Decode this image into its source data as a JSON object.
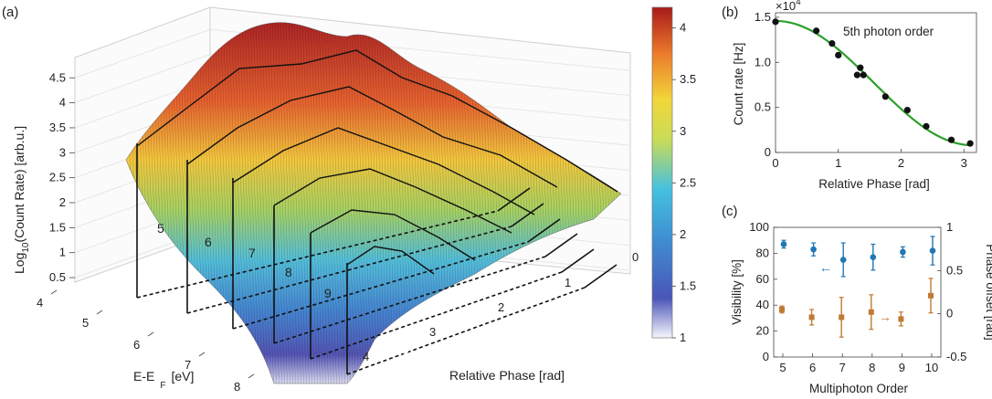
{
  "panel_a": {
    "label": "(a)",
    "zlabel_pre": "Log",
    "zlabel_sub": "10",
    "zlabel_post": "(Count Rate) [arb.u.]",
    "xlabel_pre": "E-E",
    "xlabel_sub": "F",
    "xlabel_post": "[eV]",
    "ylabel": "Relative Phase [rad]",
    "colorbar_ticks": [
      "4",
      "3.5",
      "3",
      "2.5",
      "2",
      "1.5",
      "1"
    ],
    "order_labels": [
      "5",
      "6",
      "7",
      "8",
      "9",
      "10"
    ]
  },
  "panel_b": {
    "label": "(b)",
    "multiplier_base": "×10",
    "multiplier_exp": "4"
  },
  "panel_c": {
    "label": "(c)",
    "arrow_left": "←",
    "arrow_right": "→"
  },
  "chart_data": [
    {
      "type": "surface",
      "title": "",
      "xlabel": "E-E F [eV]",
      "ylabel": "Relative Phase [rad]",
      "zlabel": "Log10(Count Rate) [arb.u.]",
      "x_ticks": [
        "4",
        "5",
        "6",
        "7",
        "8"
      ],
      "y_ticks": [
        "0",
        "1",
        "2",
        "3",
        "4"
      ],
      "z_ticks": [
        "0.5",
        "1",
        "1.5",
        "2",
        "2.5",
        "3",
        "3.5",
        "4",
        "4.5"
      ],
      "colorbar_range": [
        1,
        4.2
      ],
      "grid": true,
      "profile_at_phase_0": {
        "x": [
          3.5,
          4.0,
          4.5,
          5.0,
          5.5,
          6.0,
          6.5,
          7.0,
          7.5,
          8.0,
          8.5
        ],
        "z": [
          3.9,
          4.2,
          4.5,
          4.4,
          4.1,
          3.6,
          3.2,
          2.8,
          2.4,
          2.1,
          2.0
        ]
      },
      "order_labels": [
        "5",
        "6",
        "7",
        "8",
        "9",
        "10"
      ]
    },
    {
      "type": "scatter",
      "title": "",
      "xlabel": "Relative Phase [rad]",
      "ylabel": "Count rate [Hz]",
      "annotation": "5th photon order",
      "y_multiplier": "×10^4",
      "xlim": [
        0,
        3.2
      ],
      "ylim": [
        0,
        1.55
      ],
      "x_ticks": [
        "0",
        "1",
        "2",
        "3"
      ],
      "y_ticks": [
        "0",
        "0.5",
        "1.0",
        "1.5"
      ],
      "series": [
        {
          "x": [
            0.0,
            0.65,
            0.9,
            1.0,
            1.3,
            1.35,
            1.4,
            1.75,
            2.1,
            2.4,
            2.8,
            3.1
          ],
          "y": [
            1.45,
            1.35,
            1.21,
            1.08,
            0.86,
            0.94,
            0.86,
            0.62,
            0.47,
            0.29,
            0.14,
            0.1
          ]
        }
      ],
      "fit": {
        "color": "#2ca02c"
      }
    },
    {
      "type": "scatter",
      "title": "",
      "xlabel": "Multiphoton Order",
      "ylabel": "Visibility [%]",
      "y2label": "Phase offset [rad]",
      "x_ticks": [
        "5",
        "6",
        "7",
        "8",
        "9",
        "10"
      ],
      "y_ticks": [
        "0",
        "20",
        "40",
        "60",
        "80",
        "100"
      ],
      "y2_ticks": [
        "-0.5",
        "0",
        "0.5",
        "1"
      ],
      "ylim": [
        0,
        100
      ],
      "y2lim": [
        -0.5,
        1
      ],
      "series": [
        {
          "axis": "left",
          "color": "#1f77b4",
          "x": [
            5,
            6,
            7,
            8,
            9,
            10
          ],
          "y": [
            87,
            83,
            75,
            77,
            81,
            82
          ],
          "err": [
            3,
            5,
            13,
            10,
            4,
            11
          ]
        },
        {
          "axis": "right",
          "color": "#c07a33",
          "x": [
            5,
            6,
            7,
            8,
            9,
            10
          ],
          "y": [
            0.05,
            -0.04,
            -0.04,
            0.02,
            -0.06,
            0.21
          ],
          "err": [
            0.04,
            0.09,
            0.23,
            0.2,
            0.08,
            0.2
          ]
        }
      ]
    }
  ]
}
